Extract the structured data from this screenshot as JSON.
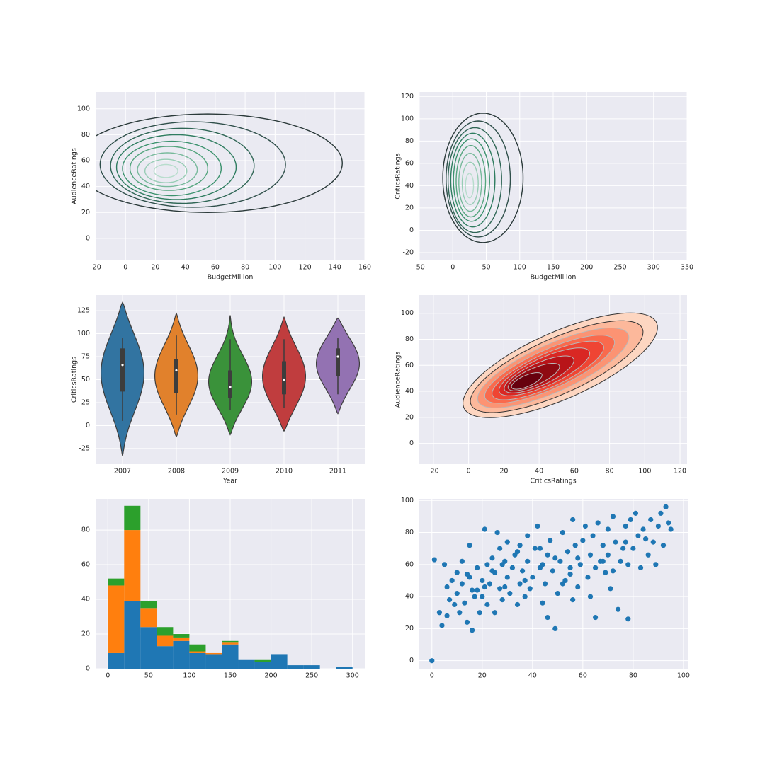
{
  "chart_data": [
    {
      "type": "contour",
      "xlabel": "BudgetMillion",
      "ylabel": "AudienceRatings",
      "xlim": [
        -20,
        160
      ],
      "xticks": [
        -20,
        0,
        20,
        40,
        60,
        80,
        100,
        120,
        140,
        160
      ],
      "ylim": [
        -17,
        113
      ],
      "yticks": [
        0,
        20,
        40,
        60,
        80,
        100
      ],
      "filled": false,
      "contours": [
        {
          "cx": 55,
          "cy": 58,
          "rx": 90,
          "ry": 38,
          "color": "#2b3a3a"
        },
        {
          "cx": 45,
          "cy": 57,
          "rx": 62,
          "ry": 33,
          "color": "#2f4f4a"
        },
        {
          "cx": 38,
          "cy": 56,
          "rx": 48,
          "ry": 29,
          "color": "#2f6655"
        },
        {
          "cx": 34,
          "cy": 55,
          "rx": 40,
          "ry": 25,
          "color": "#2f7d60"
        },
        {
          "cx": 31,
          "cy": 54,
          "rx": 33,
          "ry": 21,
          "color": "#3b926d"
        },
        {
          "cx": 29,
          "cy": 54,
          "rx": 26,
          "ry": 17,
          "color": "#55a57e"
        },
        {
          "cx": 28,
          "cy": 53,
          "rx": 20,
          "ry": 13,
          "color": "#76b99a"
        },
        {
          "cx": 27,
          "cy": 52,
          "rx": 14,
          "ry": 9,
          "color": "#98cdb5"
        },
        {
          "cx": 27,
          "cy": 52,
          "rx": 8,
          "ry": 5,
          "color": "#b7ddcc"
        }
      ]
    },
    {
      "type": "contour",
      "xlabel": "BudgetMillion",
      "ylabel": "CriticsRatings",
      "xlim": [
        -50,
        350
      ],
      "xticks": [
        -50,
        0,
        50,
        100,
        150,
        200,
        250,
        300,
        350
      ],
      "ylim": [
        -27,
        124
      ],
      "yticks": [
        -20,
        0,
        20,
        40,
        60,
        80,
        100,
        120
      ],
      "filled": false,
      "contours": [
        {
          "cx": 45,
          "cy": 47,
          "rx": 60,
          "ry": 58,
          "color": "#2b3a3a"
        },
        {
          "cx": 38,
          "cy": 46,
          "rx": 48,
          "ry": 52,
          "color": "#2f4f4a"
        },
        {
          "cx": 33,
          "cy": 45,
          "rx": 40,
          "ry": 47,
          "color": "#2f6655"
        },
        {
          "cx": 30,
          "cy": 45,
          "rx": 33,
          "ry": 42,
          "color": "#2f7d60"
        },
        {
          "cx": 28,
          "cy": 45,
          "rx": 27,
          "ry": 37,
          "color": "#3b926d"
        },
        {
          "cx": 27,
          "cy": 44,
          "rx": 22,
          "ry": 32,
          "color": "#55a57e"
        },
        {
          "cx": 26,
          "cy": 43,
          "rx": 17,
          "ry": 26,
          "color": "#76b99a"
        },
        {
          "cx": 26,
          "cy": 42,
          "rx": 12,
          "ry": 19,
          "color": "#98cdb5"
        },
        {
          "cx": 25,
          "cy": 40,
          "rx": 6,
          "ry": 11,
          "color": "#b7ddcc"
        }
      ]
    },
    {
      "type": "violin",
      "xlabel": "Year",
      "ylabel": "CriticsRatings",
      "categories": [
        "2007",
        "2008",
        "2009",
        "2010",
        "2011"
      ],
      "colors": [
        "#3274a1",
        "#e1812c",
        "#3a923a",
        "#c03d3e",
        "#9372b2"
      ],
      "ylim": [
        -42,
        142
      ],
      "yticks": [
        -25,
        0,
        25,
        50,
        75,
        100,
        125
      ],
      "violins": [
        {
          "extent": [
            -33,
            134
          ],
          "whiskers": [
            5,
            95
          ],
          "quartiles": [
            37,
            66,
            84
          ]
        },
        {
          "extent": [
            -12,
            122
          ],
          "whiskers": [
            12,
            98
          ],
          "quartiles": [
            35,
            60,
            72
          ]
        },
        {
          "extent": [
            -10,
            120
          ],
          "whiskers": [
            17,
            94
          ],
          "quartiles": [
            30,
            42,
            60
          ]
        },
        {
          "extent": [
            -6,
            118
          ],
          "whiskers": [
            19,
            94
          ],
          "quartiles": [
            34,
            50,
            70
          ]
        },
        {
          "extent": [
            13,
            117
          ],
          "whiskers": [
            34,
            95
          ],
          "quartiles": [
            54,
            75,
            84
          ]
        }
      ]
    },
    {
      "type": "contour",
      "xlabel": "CriticsRatings",
      "ylabel": "AudienceRatings",
      "xlim": [
        -28,
        124
      ],
      "xticks": [
        -20,
        0,
        20,
        40,
        60,
        80,
        100,
        120
      ],
      "ylim": [
        -16,
        114
      ],
      "yticks": [
        0,
        20,
        40,
        60,
        80,
        100
      ],
      "filled": true,
      "contours": [
        {
          "cx": 52,
          "cy": 60,
          "rx": 64,
          "ry": 24,
          "angle": 33,
          "color": "#fdd6c1"
        },
        {
          "cx": 50,
          "cy": 59,
          "rx": 57,
          "ry": 20,
          "angle": 33,
          "color": "#fcb89b"
        },
        {
          "cx": 48,
          "cy": 58,
          "rx": 50,
          "ry": 17,
          "angle": 33,
          "color": "#fc9373"
        },
        {
          "cx": 46,
          "cy": 57,
          "rx": 43,
          "ry": 14,
          "angle": 33,
          "color": "#f96a4d"
        },
        {
          "cx": 45,
          "cy": 56,
          "rx": 37,
          "ry": 12,
          "angle": 33,
          "color": "#ef4533"
        },
        {
          "cx": 43,
          "cy": 55,
          "rx": 30,
          "ry": 10,
          "angle": 33,
          "color": "#d92723"
        },
        {
          "cx": 40,
          "cy": 53,
          "rx": 23,
          "ry": 8,
          "angle": 33,
          "color": "#b81419"
        },
        {
          "cx": 37,
          "cy": 51,
          "rx": 17,
          "ry": 6,
          "angle": 33,
          "color": "#8f0a12"
        },
        {
          "cx": 33,
          "cy": 48,
          "rx": 10,
          "ry": 4,
          "angle": 33,
          "color": "#67000d"
        }
      ]
    },
    {
      "type": "histogram",
      "xlim": [
        -15,
        315
      ],
      "xticks": [
        0,
        50,
        100,
        150,
        200,
        250,
        300
      ],
      "ylim": [
        0,
        98
      ],
      "yticks": [
        0,
        20,
        40,
        60,
        80
      ],
      "bins": [
        0,
        20,
        40,
        60,
        80,
        100,
        120,
        140,
        160,
        180,
        200,
        220,
        240,
        260,
        280,
        300
      ],
      "series": [
        {
          "color": "#1f77b4",
          "values": [
            9,
            39,
            24,
            13,
            16,
            9,
            8,
            14,
            5,
            4,
            8,
            2,
            2,
            0,
            1
          ]
        },
        {
          "color": "#ff7f0e",
          "values": [
            39,
            41,
            11,
            6,
            2,
            1,
            1,
            1,
            0,
            0,
            0,
            0,
            0,
            0,
            0
          ]
        },
        {
          "color": "#2ca02c",
          "values": [
            4,
            14,
            4,
            5,
            2,
            4,
            0,
            1,
            0,
            1,
            0,
            0,
            0,
            0,
            0
          ]
        }
      ]
    },
    {
      "type": "scatter",
      "xlim": [
        -5,
        102
      ],
      "xticks": [
        0,
        20,
        40,
        60,
        80,
        100
      ],
      "ylim": [
        -5,
        101
      ],
      "yticks": [
        0,
        20,
        40,
        60,
        80,
        100
      ],
      "color": "#1f77b4",
      "x": [
        0,
        1,
        3,
        4,
        5,
        6,
        7,
        8,
        9,
        10,
        10,
        11,
        12,
        13,
        14,
        15,
        15,
        16,
        17,
        18,
        18,
        19,
        20,
        20,
        21,
        22,
        22,
        23,
        24,
        25,
        25,
        26,
        27,
        27,
        28,
        29,
        30,
        30,
        31,
        32,
        33,
        34,
        35,
        35,
        36,
        37,
        38,
        38,
        39,
        40,
        41,
        42,
        43,
        44,
        45,
        46,
        46,
        47,
        48,
        49,
        50,
        51,
        52,
        53,
        54,
        55,
        56,
        56,
        57,
        58,
        59,
        60,
        61,
        62,
        63,
        64,
        65,
        65,
        66,
        67,
        68,
        69,
        70,
        70,
        71,
        72,
        73,
        74,
        75,
        76,
        77,
        78,
        78,
        79,
        80,
        81,
        82,
        83,
        84,
        85,
        86,
        87,
        88,
        89,
        90,
        91,
        92,
        93,
        94,
        95,
        12,
        16,
        24,
        29,
        34,
        44,
        52,
        58,
        63,
        72,
        6,
        14,
        21,
        28,
        37,
        43,
        49,
        55,
        68,
        77
      ],
      "y": [
        0,
        63,
        30,
        22,
        60,
        46,
        38,
        50,
        35,
        42,
        55,
        30,
        48,
        36,
        24,
        72,
        52,
        19,
        40,
        58,
        44,
        30,
        50,
        40,
        82,
        35,
        60,
        48,
        64,
        30,
        55,
        80,
        45,
        70,
        38,
        62,
        52,
        74,
        42,
        58,
        66,
        35,
        48,
        72,
        56,
        40,
        62,
        78,
        45,
        52,
        70,
        84,
        58,
        36,
        48,
        27,
        66,
        75,
        56,
        20,
        42,
        62,
        80,
        50,
        68,
        58,
        38,
        88,
        72,
        46,
        60,
        75,
        84,
        52,
        66,
        78,
        27,
        58,
        86,
        62,
        72,
        55,
        82,
        66,
        45,
        90,
        74,
        32,
        62,
        70,
        84,
        26,
        60,
        88,
        70,
        92,
        78,
        58,
        82,
        76,
        66,
        88,
        74,
        60,
        84,
        92,
        72,
        96,
        86,
        82,
        62,
        44,
        56,
        46,
        68,
        60,
        48,
        64,
        40,
        56,
        28,
        54,
        46,
        60,
        50,
        70,
        64,
        54,
        62,
        74
      ]
    }
  ]
}
